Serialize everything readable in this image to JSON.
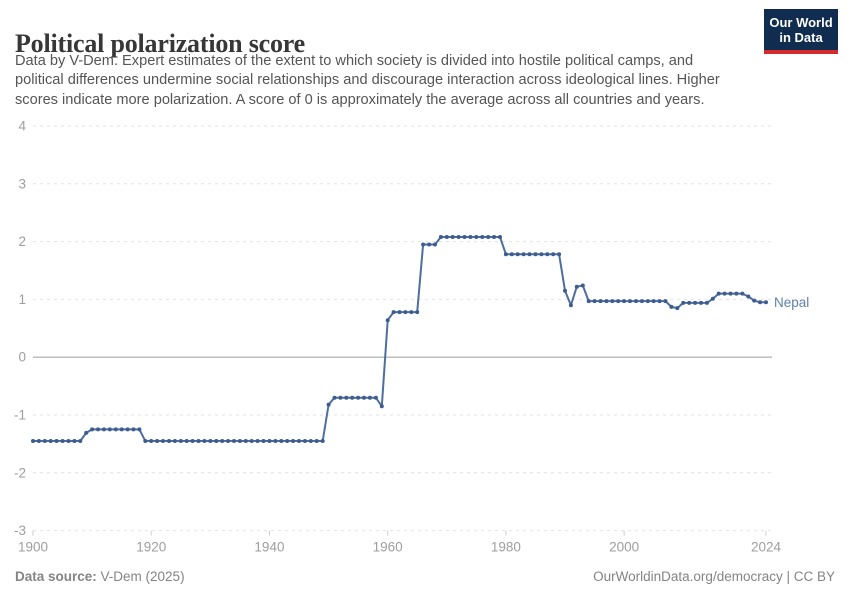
{
  "header": {
    "title": "Political polarization score",
    "subtitle_lines": [
      "Data by V-Dem. Expert estimates of the extent to which society is divided into hostile political camps, and",
      "political differences undermine social relationships and discourage interaction across ideological lines. Higher",
      "scores indicate more polarization. A score of 0 is approximately the average across all countries and years."
    ],
    "logo": {
      "line1": "Our World",
      "line2": "in Data"
    }
  },
  "chart_data": {
    "type": "line",
    "title": "Political polarization score",
    "xlabel": "",
    "ylabel": "",
    "xlim": [
      1900,
      2024
    ],
    "ylim": [
      -3,
      4
    ],
    "x_ticks": [
      1900,
      1920,
      1940,
      1960,
      1980,
      2000,
      2024
    ],
    "y_ticks": [
      4,
      3,
      2,
      1,
      0,
      -1,
      -2,
      -3
    ],
    "grid": "horizontal-dashed, solid zero line",
    "legend_position": "series label at right end of line",
    "line_color": "#4e6ea0",
    "marker_color": "#3d5c90",
    "zero_line_color": "#b8b8b8",
    "grid_color": "#e2e2e2",
    "axis_label_color": "#9e9e9e",
    "series_label_color": "#5f7fa9",
    "x": [
      1900,
      1901,
      1902,
      1903,
      1904,
      1905,
      1906,
      1907,
      1908,
      1909,
      1910,
      1911,
      1912,
      1913,
      1914,
      1915,
      1916,
      1917,
      1918,
      1919,
      1920,
      1921,
      1922,
      1923,
      1924,
      1925,
      1926,
      1927,
      1928,
      1929,
      1930,
      1931,
      1932,
      1933,
      1934,
      1935,
      1936,
      1937,
      1938,
      1939,
      1940,
      1941,
      1942,
      1943,
      1944,
      1945,
      1946,
      1947,
      1948,
      1949,
      1950,
      1951,
      1952,
      1953,
      1954,
      1955,
      1956,
      1957,
      1958,
      1959,
      1960,
      1961,
      1962,
      1963,
      1964,
      1965,
      1966,
      1967,
      1968,
      1969,
      1970,
      1971,
      1972,
      1973,
      1974,
      1975,
      1976,
      1977,
      1978,
      1979,
      1980,
      1981,
      1982,
      1983,
      1984,
      1985,
      1986,
      1987,
      1988,
      1989,
      1990,
      1991,
      1992,
      1993,
      1994,
      1995,
      1996,
      1997,
      1998,
      1999,
      2000,
      2001,
      2002,
      2003,
      2004,
      2005,
      2006,
      2007,
      2008,
      2009,
      2010,
      2011,
      2012,
      2013,
      2014,
      2015,
      2016,
      2017,
      2018,
      2019,
      2020,
      2021,
      2022,
      2023,
      2024
    ],
    "series": [
      {
        "name": "Nepal",
        "values": [
          -1.45,
          -1.45,
          -1.45,
          -1.45,
          -1.45,
          -1.45,
          -1.45,
          -1.45,
          -1.45,
          -1.31,
          -1.25,
          -1.25,
          -1.25,
          -1.25,
          -1.25,
          -1.25,
          -1.25,
          -1.25,
          -1.25,
          -1.45,
          -1.45,
          -1.45,
          -1.45,
          -1.45,
          -1.45,
          -1.45,
          -1.45,
          -1.45,
          -1.45,
          -1.45,
          -1.45,
          -1.45,
          -1.45,
          -1.45,
          -1.45,
          -1.45,
          -1.45,
          -1.45,
          -1.45,
          -1.45,
          -1.45,
          -1.45,
          -1.45,
          -1.45,
          -1.45,
          -1.45,
          -1.45,
          -1.45,
          -1.45,
          -1.45,
          -0.82,
          -0.7,
          -0.7,
          -0.7,
          -0.7,
          -0.7,
          -0.7,
          -0.7,
          -0.7,
          -0.85,
          0.64,
          0.78,
          0.78,
          0.78,
          0.78,
          0.78,
          1.95,
          1.95,
          1.95,
          2.08,
          2.08,
          2.08,
          2.08,
          2.08,
          2.08,
          2.08,
          2.08,
          2.08,
          2.08,
          2.08,
          1.78,
          1.78,
          1.78,
          1.78,
          1.78,
          1.78,
          1.78,
          1.78,
          1.78,
          1.78,
          1.15,
          0.9,
          1.22,
          1.24,
          0.97,
          0.97,
          0.97,
          0.97,
          0.97,
          0.97,
          0.97,
          0.97,
          0.97,
          0.97,
          0.97,
          0.97,
          0.97,
          0.97,
          0.87,
          0.85,
          0.94,
          0.94,
          0.94,
          0.94,
          0.94,
          1.01,
          1.1,
          1.1,
          1.1,
          1.1,
          1.1,
          1.05,
          0.98,
          0.95,
          0.95
        ]
      }
    ]
  },
  "footer": {
    "source_label": "Data source:",
    "source_value": " V-Dem (2025)",
    "link": "OurWorldinData.org/democracy",
    "separator": " | ",
    "license": "CC BY"
  }
}
